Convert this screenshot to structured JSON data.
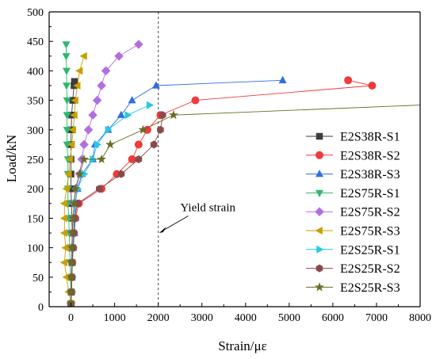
{
  "chart_data": {
    "type": "line",
    "xlabel": "Strain/με",
    "ylabel": "Load/kN",
    "xlim": [
      -500,
      8000
    ],
    "ylim": [
      0,
      500
    ],
    "xticks": [
      0,
      1000,
      2000,
      3000,
      4000,
      5000,
      6000,
      7000,
      8000
    ],
    "yticks": [
      0,
      50,
      100,
      150,
      200,
      250,
      300,
      350,
      400,
      450,
      500
    ],
    "grid": false,
    "legend_position": "right",
    "reference_line": {
      "x": 2000,
      "style": "dashed",
      "color": "#555555"
    },
    "annotation": {
      "text": "Yield strain",
      "x_text": 2650,
      "y_text": 162,
      "arrow_to_x": 2020,
      "arrow_to_y": 125
    },
    "series": [
      {
        "name": "E2S38R-S1",
        "color": "#3d3d3d",
        "marker": "square",
        "points": [
          [
            0,
            5
          ],
          [
            5,
            25
          ],
          [
            10,
            50
          ],
          [
            20,
            75
          ],
          [
            30,
            100
          ],
          [
            30,
            125
          ],
          [
            20,
            150
          ],
          [
            10,
            175
          ],
          [
            0,
            200
          ],
          [
            0,
            225
          ],
          [
            0,
            250
          ],
          [
            0,
            275
          ],
          [
            5,
            300
          ],
          [
            15,
            325
          ],
          [
            40,
            350
          ],
          [
            70,
            375
          ],
          [
            80,
            382
          ]
        ]
      },
      {
        "name": "E2S38R-S2",
        "color": "#ef3b3b",
        "marker": "circle",
        "points": [
          [
            0,
            5
          ],
          [
            10,
            25
          ],
          [
            20,
            50
          ],
          [
            30,
            75
          ],
          [
            50,
            100
          ],
          [
            70,
            125
          ],
          [
            100,
            150
          ],
          [
            180,
            175
          ],
          [
            700,
            200
          ],
          [
            1050,
            225
          ],
          [
            1400,
            250
          ],
          [
            1550,
            275
          ],
          [
            1750,
            300
          ],
          [
            2050,
            325
          ],
          [
            2850,
            350
          ],
          [
            6900,
            375
          ],
          [
            6350,
            384
          ]
        ]
      },
      {
        "name": "E2S38R-S3",
        "color": "#2f6fe0",
        "marker": "triangle-up",
        "points": [
          [
            0,
            5
          ],
          [
            10,
            25
          ],
          [
            20,
            50
          ],
          [
            30,
            75
          ],
          [
            50,
            100
          ],
          [
            80,
            125
          ],
          [
            100,
            150
          ],
          [
            100,
            175
          ],
          [
            150,
            200
          ],
          [
            250,
            225
          ],
          [
            500,
            250
          ],
          [
            550,
            275
          ],
          [
            850,
            300
          ],
          [
            1150,
            325
          ],
          [
            1400,
            350
          ],
          [
            1950,
            375
          ],
          [
            4850,
            384
          ]
        ]
      },
      {
        "name": "E2S75R-S1",
        "color": "#2db86e",
        "marker": "triangle-down",
        "points": [
          [
            0,
            5
          ],
          [
            0,
            25
          ],
          [
            -10,
            50
          ],
          [
            -20,
            75
          ],
          [
            -30,
            100
          ],
          [
            -40,
            125
          ],
          [
            -50,
            150
          ],
          [
            -70,
            175
          ],
          [
            -70,
            200
          ],
          [
            -70,
            225
          ],
          [
            -70,
            250
          ],
          [
            -90,
            275
          ],
          [
            -90,
            300
          ],
          [
            -90,
            325
          ],
          [
            -90,
            350
          ],
          [
            -100,
            375
          ],
          [
            -100,
            400
          ],
          [
            -110,
            425
          ],
          [
            -110,
            445
          ]
        ]
      },
      {
        "name": "E2S75R-S2",
        "color": "#b06ee0",
        "marker": "diamond",
        "points": [
          [
            0,
            5
          ],
          [
            10,
            25
          ],
          [
            20,
            50
          ],
          [
            20,
            75
          ],
          [
            20,
            100
          ],
          [
            30,
            125
          ],
          [
            50,
            150
          ],
          [
            70,
            175
          ],
          [
            120,
            200
          ],
          [
            200,
            225
          ],
          [
            250,
            250
          ],
          [
            300,
            275
          ],
          [
            400,
            300
          ],
          [
            500,
            325
          ],
          [
            600,
            350
          ],
          [
            700,
            375
          ],
          [
            800,
            400
          ],
          [
            1100,
            425
          ],
          [
            1550,
            445
          ]
        ]
      },
      {
        "name": "E2S75R-S3",
        "color": "#c9a000",
        "marker": "triangle-left",
        "points": [
          [
            0,
            5
          ],
          [
            -50,
            25
          ],
          [
            -100,
            50
          ],
          [
            -150,
            75
          ],
          [
            -120,
            100
          ],
          [
            -150,
            125
          ],
          [
            -150,
            150
          ],
          [
            -150,
            175
          ],
          [
            -100,
            200
          ],
          [
            -50,
            225
          ],
          [
            -20,
            250
          ],
          [
            20,
            275
          ],
          [
            50,
            300
          ],
          [
            80,
            325
          ],
          [
            100,
            350
          ],
          [
            150,
            375
          ],
          [
            200,
            400
          ],
          [
            300,
            425
          ]
        ]
      },
      {
        "name": "E2S25R-S1",
        "color": "#22cbe0",
        "marker": "triangle-right",
        "points": [
          [
            0,
            5
          ],
          [
            10,
            25
          ],
          [
            20,
            50
          ],
          [
            30,
            75
          ],
          [
            50,
            100
          ],
          [
            70,
            125
          ],
          [
            80,
            150
          ],
          [
            90,
            175
          ],
          [
            150,
            200
          ],
          [
            300,
            225
          ],
          [
            500,
            250
          ],
          [
            600,
            275
          ],
          [
            850,
            300
          ],
          [
            1300,
            325
          ],
          [
            1800,
            342
          ]
        ]
      },
      {
        "name": "E2S25R-S2",
        "color": "#8b4a4a",
        "marker": "hexagon",
        "points": [
          [
            0,
            5
          ],
          [
            10,
            25
          ],
          [
            20,
            50
          ],
          [
            30,
            75
          ],
          [
            50,
            100
          ],
          [
            60,
            125
          ],
          [
            80,
            150
          ],
          [
            150,
            175
          ],
          [
            650,
            200
          ],
          [
            1150,
            225
          ],
          [
            1550,
            250
          ],
          [
            1900,
            275
          ],
          [
            2050,
            300
          ],
          [
            2100,
            325
          ]
        ]
      },
      {
        "name": "E2S25R-S3",
        "color": "#6b6b22",
        "marker": "star",
        "points": [
          [
            0,
            5
          ],
          [
            0,
            25
          ],
          [
            10,
            50
          ],
          [
            20,
            75
          ],
          [
            20,
            100
          ],
          [
            30,
            125
          ],
          [
            50,
            150
          ],
          [
            70,
            175
          ],
          [
            100,
            200
          ],
          [
            200,
            225
          ],
          [
            300,
            250
          ],
          [
            700,
            250
          ],
          [
            900,
            275
          ],
          [
            1650,
            300
          ],
          [
            2350,
            325
          ],
          [
            8000,
            342
          ]
        ]
      }
    ]
  }
}
